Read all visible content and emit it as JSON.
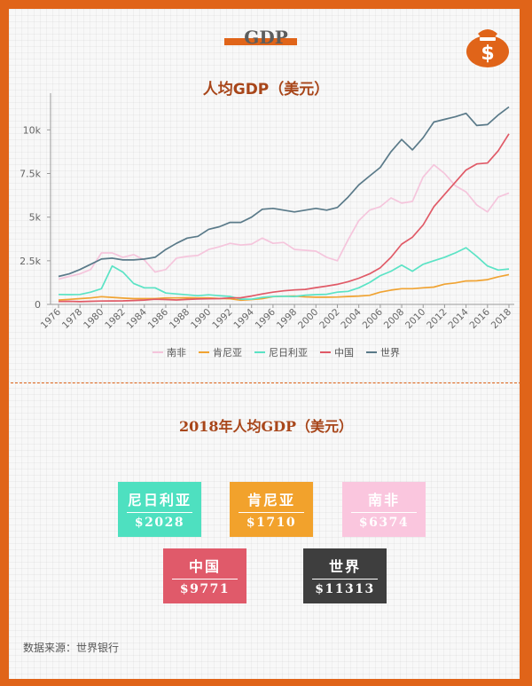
{
  "header": {
    "title": "GDP"
  },
  "chart_title": "人均GDP（美元）",
  "chart_data": {
    "type": "line",
    "title": "人均GDP（美元）",
    "xlabel": "",
    "ylabel": "",
    "x": [
      1976,
      1977,
      1978,
      1979,
      1980,
      1981,
      1982,
      1983,
      1984,
      1985,
      1986,
      1987,
      1988,
      1989,
      1990,
      1991,
      1992,
      1993,
      1994,
      1995,
      1996,
      1997,
      1998,
      1999,
      2000,
      2001,
      2002,
      2003,
      2004,
      2005,
      2006,
      2007,
      2008,
      2009,
      2010,
      2011,
      2012,
      2013,
      2014,
      2015,
      2016,
      2017,
      2018
    ],
    "x_ticks": [
      "1976",
      "1978",
      "1980",
      "1982",
      "1984",
      "1986",
      "1988",
      "1990",
      "1992",
      "1994",
      "1996",
      "1998",
      "2000",
      "2002",
      "2004",
      "2006",
      "2008",
      "2010",
      "2012",
      "2014",
      "2016",
      "2018"
    ],
    "y_ticks": [
      {
        "value": 0,
        "label": "0"
      },
      {
        "value": 2500,
        "label": "2.5k"
      },
      {
        "value": 5000,
        "label": "5k"
      },
      {
        "value": 7500,
        "label": "7.5k"
      },
      {
        "value": 10000,
        "label": "10k"
      }
    ],
    "ylim": [
      0,
      12000
    ],
    "grid": false,
    "legend_position": "bottom",
    "series": [
      {
        "name": "南非",
        "color": "#f5c5dc",
        "values": [
          1450,
          1600,
          1750,
          2000,
          2950,
          2950,
          2700,
          2850,
          2550,
          1850,
          2000,
          2650,
          2750,
          2800,
          3150,
          3300,
          3500,
          3400,
          3450,
          3800,
          3500,
          3550,
          3150,
          3100,
          3050,
          2700,
          2500,
          3700,
          4800,
          5400,
          5600,
          6100,
          5800,
          5900,
          7300,
          8000,
          7500,
          6800,
          6450,
          5700,
          5300,
          6150,
          6374
        ]
      },
      {
        "name": "肯尼亚",
        "color": "#f0a332",
        "values": [
          250,
          290,
          330,
          370,
          440,
          400,
          360,
          330,
          330,
          330,
          370,
          370,
          380,
          370,
          370,
          340,
          320,
          240,
          280,
          330,
          440,
          470,
          480,
          430,
          410,
          410,
          420,
          450,
          480,
          520,
          700,
          820,
          900,
          900,
          950,
          990,
          1160,
          1230,
          1340,
          1350,
          1420,
          1580,
          1710
        ]
      },
      {
        "name": "尼日利亚",
        "color": "#5be3c5",
        "values": [
          570,
          560,
          570,
          700,
          900,
          2200,
          1850,
          1200,
          950,
          950,
          650,
          600,
          550,
          500,
          550,
          500,
          450,
          300,
          300,
          400,
          450,
          470,
          450,
          530,
          560,
          580,
          700,
          750,
          950,
          1250,
          1650,
          1900,
          2250,
          1900,
          2300,
          2500,
          2700,
          2950,
          3250,
          2750,
          2200,
          1970,
          2028
        ]
      },
      {
        "name": "中国",
        "color": "#e05a67",
        "values": [
          170,
          180,
          160,
          180,
          195,
          200,
          205,
          225,
          250,
          295,
          280,
          255,
          285,
          310,
          320,
          330,
          370,
          380,
          480,
          600,
          700,
          780,
          830,
          860,
          960,
          1050,
          1150,
          1300,
          1500,
          1750,
          2100,
          2700,
          3450,
          3850,
          4550,
          5600,
          6300,
          7000,
          7700,
          8050,
          8100,
          8800,
          9771
        ]
      },
      {
        "name": "世界",
        "color": "#5a7a89",
        "values": [
          1600,
          1750,
          2000,
          2300,
          2600,
          2650,
          2550,
          2550,
          2600,
          2700,
          3150,
          3500,
          3800,
          3900,
          4300,
          4450,
          4700,
          4700,
          5000,
          5450,
          5500,
          5400,
          5300,
          5400,
          5500,
          5400,
          5550,
          6150,
          6850,
          7350,
          7850,
          8750,
          9450,
          8850,
          9550,
          10450,
          10600,
          10750,
          10950,
          10250,
          10300,
          10850,
          11313
        ]
      }
    ]
  },
  "section2_title": "2018年人均GDP（美元）",
  "cards": [
    {
      "label": "尼日利亚",
      "value": "$2028",
      "color": "#4ee0c0"
    },
    {
      "label": "肯尼亚",
      "value": "$1710",
      "color": "#f2a22c"
    },
    {
      "label": "南非",
      "value": "$6374",
      "color": "#fac6de"
    },
    {
      "label": "中国",
      "value": "$9771",
      "color": "#e05a6a"
    },
    {
      "label": "世界",
      "value": "$11313",
      "color": "#3e3e3e"
    }
  ],
  "footer": {
    "source": "数据来源：世界银行"
  },
  "colors": {
    "accent": "#e06419",
    "title": "#a8461a"
  },
  "icons": {
    "header_icon": "money-bag-icon"
  }
}
